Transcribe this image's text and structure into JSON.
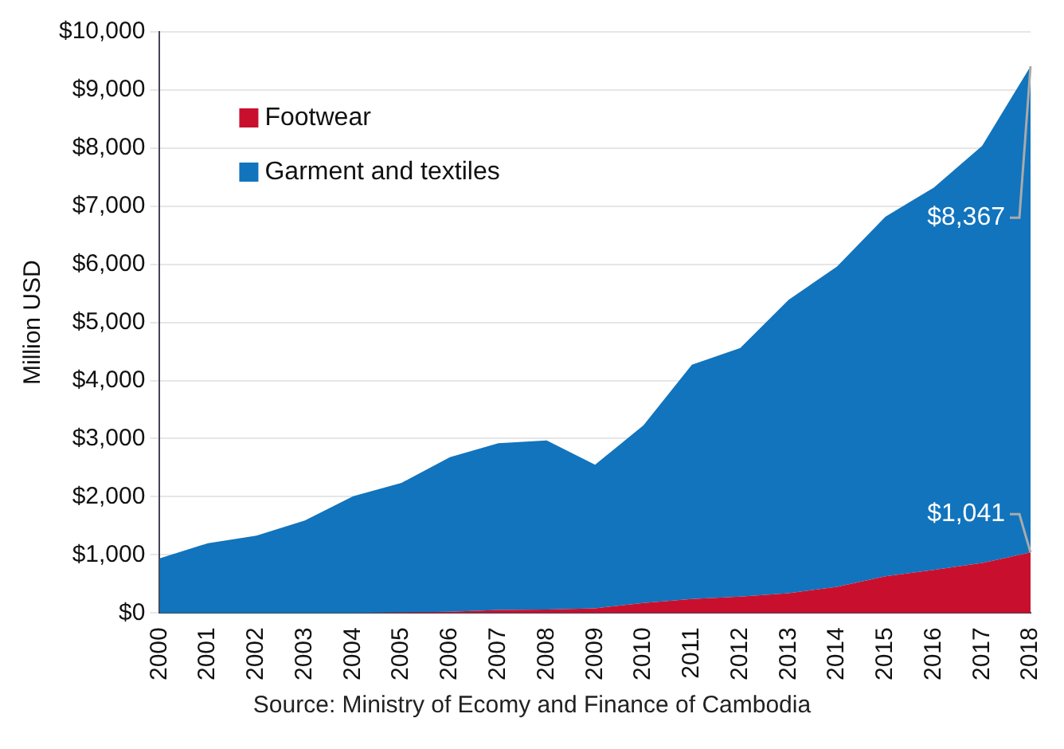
{
  "chart_data": {
    "type": "area",
    "stacked": true,
    "ylabel": "Million USD",
    "categories": [
      "2000",
      "2001",
      "2002",
      "2003",
      "2004",
      "2005",
      "2006",
      "2007",
      "2008",
      "2009",
      "2010",
      "2011",
      "2012",
      "2013",
      "2014",
      "2015",
      "2016",
      "2017",
      "2018"
    ],
    "series": [
      {
        "name": "Footwear",
        "color": "#c8102e",
        "values": [
          0,
          0,
          0,
          0,
          0,
          10,
          20,
          50,
          60,
          80,
          170,
          240,
          280,
          340,
          450,
          630,
          740,
          860,
          1041
        ],
        "value_labels": [
          null,
          null,
          null,
          null,
          null,
          null,
          null,
          null,
          null,
          null,
          null,
          null,
          null,
          null,
          null,
          null,
          null,
          null,
          "$1,041"
        ]
      },
      {
        "name": "Garment and textiles",
        "color": "#1174bd",
        "values": [
          940,
          1200,
          1330,
          1590,
          2010,
          2230,
          2660,
          2870,
          2910,
          2470,
          3060,
          4030,
          4280,
          5050,
          5510,
          6190,
          6580,
          7180,
          8367
        ],
        "value_labels": [
          null,
          null,
          null,
          null,
          null,
          null,
          null,
          null,
          null,
          null,
          null,
          null,
          null,
          null,
          null,
          null,
          null,
          null,
          "$8,367"
        ]
      }
    ],
    "ylim": [
      0,
      10000
    ],
    "yticks": [
      {
        "value": 0,
        "label": "$0"
      },
      {
        "value": 1000,
        "label": "$1,000"
      },
      {
        "value": 2000,
        "label": "$2,000"
      },
      {
        "value": 3000,
        "label": "$3,000"
      },
      {
        "value": 4000,
        "label": "$4,000"
      },
      {
        "value": 5000,
        "label": "$5,000"
      },
      {
        "value": 6000,
        "label": "$6,000"
      },
      {
        "value": 7000,
        "label": "$7,000"
      },
      {
        "value": 8000,
        "label": "$8,000"
      },
      {
        "value": 9000,
        "label": "$9,000"
      },
      {
        "value": 10000,
        "label": "$10,000"
      }
    ],
    "grid": "y",
    "legend": "top left",
    "annotations": [
      "Source: Ministry of Ecomy and Finance of Cambodia"
    ]
  }
}
